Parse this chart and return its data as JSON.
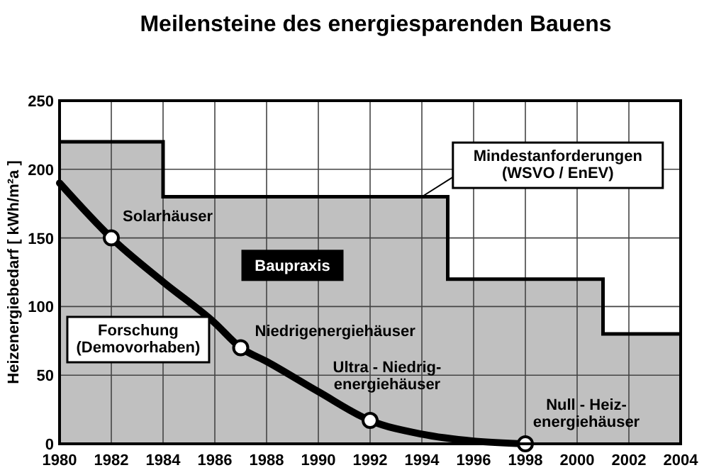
{
  "chart_data": {
    "type": "line",
    "title": "Meilensteine des energiesparenden Bauens",
    "ylabel": "Heizenergiebedarf  [ kWh/m²a ]",
    "xlim": [
      1980,
      2004
    ],
    "xticks": [
      1980,
      1982,
      1984,
      1986,
      1988,
      1990,
      1992,
      1994,
      1996,
      1998,
      2000,
      2002,
      2004
    ],
    "ylim": [
      0,
      250
    ],
    "yticks": [
      0,
      50,
      100,
      150,
      200,
      250
    ],
    "grid": true,
    "series": [
      {
        "type": "area",
        "name": "Mindestanforderungen (WSVO / EnEV)",
        "color": "#c0c0c0",
        "x": [
          1980,
          1984,
          1984,
          1995,
          1995,
          2001,
          2001,
          2004
        ],
        "values": [
          220,
          220,
          180,
          180,
          120,
          120,
          80,
          80
        ]
      },
      {
        "name": "Forschung (Demovorhaben)",
        "color": "#000000",
        "x": [
          1980,
          1982,
          1984,
          1986,
          1987,
          1988,
          1990,
          1992,
          1994,
          1996,
          1998
        ],
        "values": [
          190,
          150,
          118,
          88,
          70,
          60,
          38,
          17,
          7,
          2,
          0
        ]
      },
      {
        "type": "scatter",
        "color": "#ffffff",
        "marker": "circle",
        "x": [
          1982,
          1987,
          1992,
          1998
        ],
        "values": [
          150,
          70,
          17,
          0
        ]
      }
    ],
    "annotations": [
      "Baupraxis",
      {
        "text": "Solarhäuser",
        "x": 1982,
        "y": 150
      },
      {
        "text": "Niedrigenergiehäuser",
        "x": 1987,
        "y": 70
      },
      {
        "text": "Ultra -  Niedrig-\nenergiehäuser",
        "x": 1992,
        "y": 17
      },
      {
        "text": "Null - Heiz-\nenergiehäuser",
        "x": 1998,
        "y": 0
      }
    ]
  }
}
